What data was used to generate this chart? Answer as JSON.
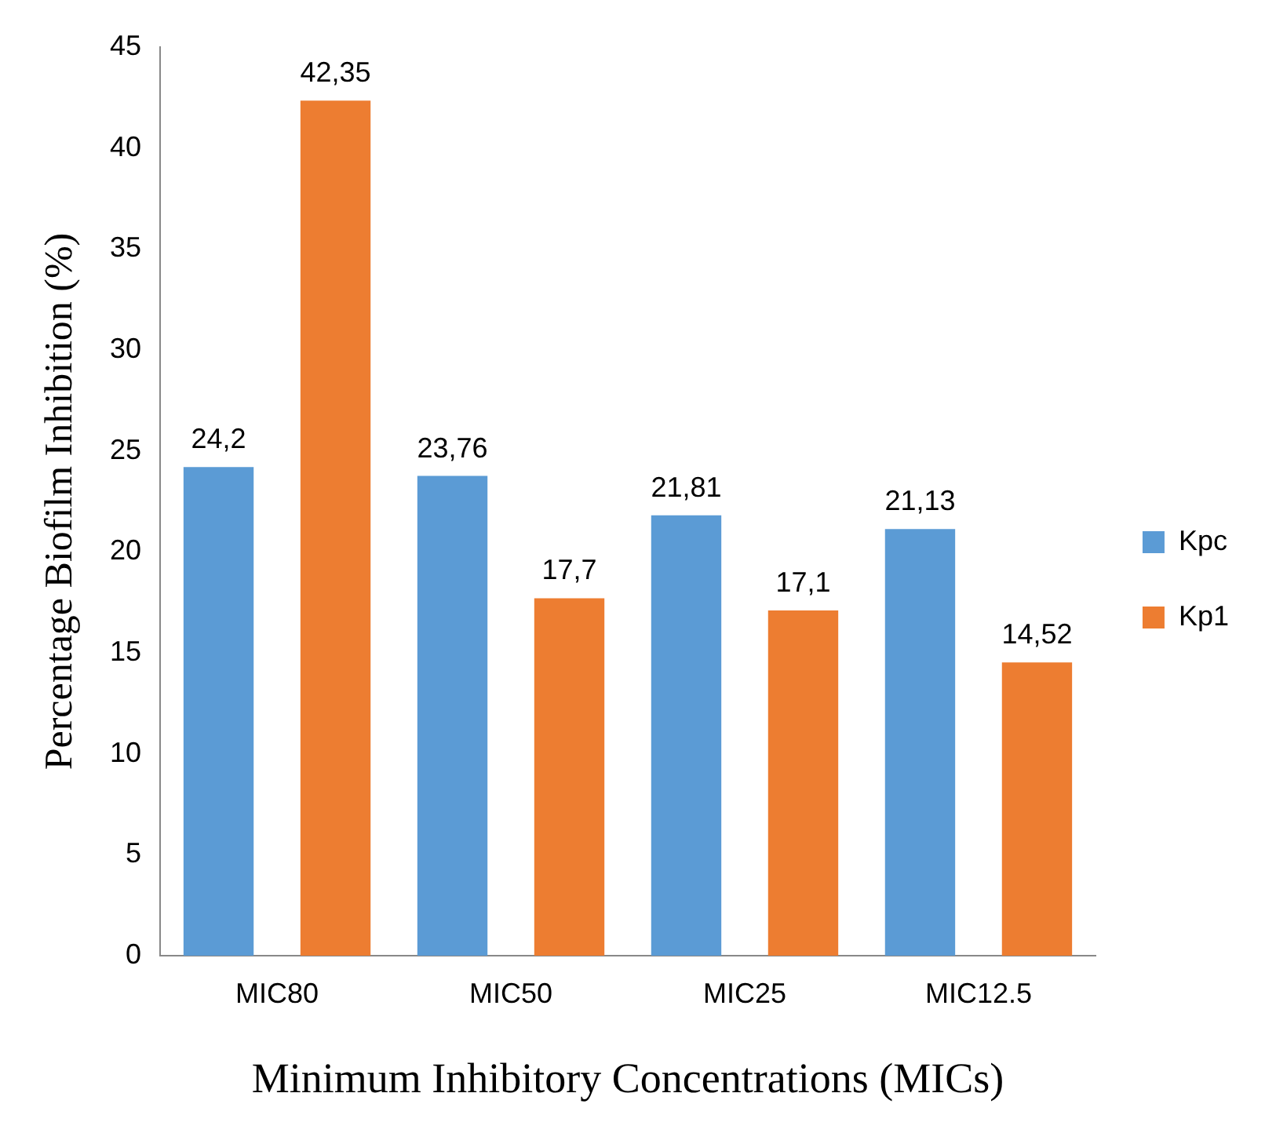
{
  "chart_data": {
    "type": "bar",
    "xlabel": "Minimum Inhibitory Concentrations (MICs)",
    "ylabel": "Percentage Biofilm Inhibition (%)",
    "categories": [
      "MIC80",
      "MIC50",
      "MIC25",
      "MIC12.5"
    ],
    "series": [
      {
        "name": "Kpc",
        "color": "#5b9bd5",
        "values": [
          24.2,
          23.76,
          21.81,
          21.13
        ],
        "value_labels": [
          "24,2",
          "23,76",
          "21,81",
          "21,13"
        ]
      },
      {
        "name": "Kp1",
        "color": "#ed7d31",
        "values": [
          42.35,
          17.7,
          17.1,
          14.52
        ],
        "value_labels": [
          "42,35",
          "17,7",
          "17,1",
          "14,52"
        ]
      }
    ],
    "ylim": [
      0,
      45
    ],
    "yticks": [
      0,
      5,
      10,
      15,
      20,
      25,
      30,
      35,
      40,
      45
    ],
    "grid": false,
    "legend": "right"
  }
}
